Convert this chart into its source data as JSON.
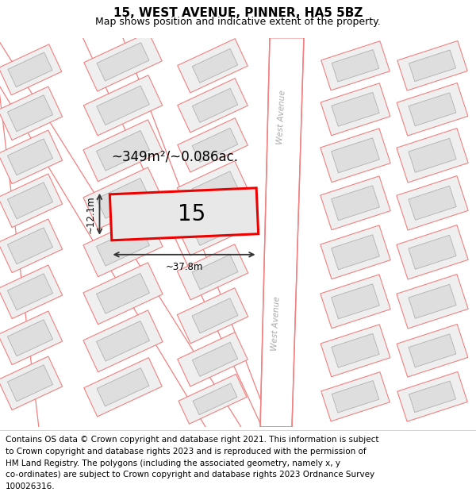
{
  "title": "15, WEST AVENUE, PINNER, HA5 5BZ",
  "subtitle": "Map shows position and indicative extent of the property.",
  "footer_lines": [
    "Contains OS data © Crown copyright and database right 2021. This information is subject",
    "to Crown copyright and database rights 2023 and is reproduced with the permission of",
    "HM Land Registry. The polygons (including the associated geometry, namely x, y",
    "co-ordinates) are subject to Crown copyright and database rights 2023 Ordnance Survey",
    "100026316."
  ],
  "map_bg": "#efefef",
  "road_color": "#f28080",
  "road_fill": "#ffffff",
  "building_fill": "#dedede",
  "building_edge": "#b0b0b0",
  "highlight_color": "#ee0000",
  "highlight_fill": "#e8e8e8",
  "measure_color": "#333333",
  "street_color": "#aaaaaa",
  "area_text": "~349m²/~0.086ac.",
  "parcel_label": "15",
  "dim_width": "~37.8m",
  "dim_height": "~12.1m",
  "street_label": "West Avenue",
  "title_fontsize": 11,
  "subtitle_fontsize": 9,
  "footer_fontsize": 7.5
}
